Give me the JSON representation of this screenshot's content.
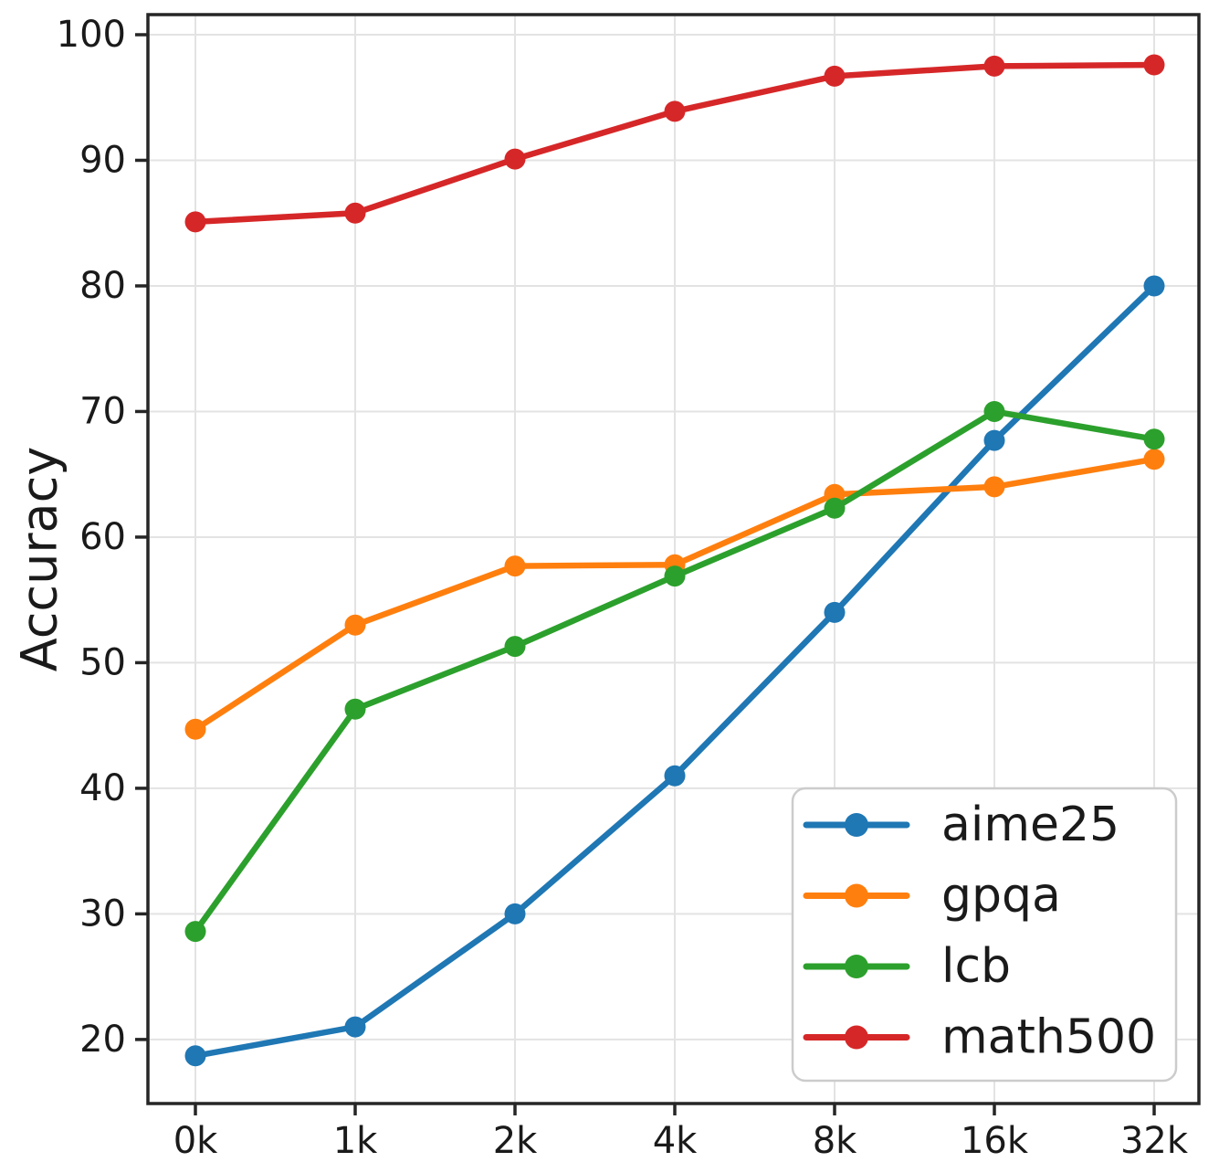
{
  "chart_data": {
    "type": "line",
    "title": "",
    "xlabel": "",
    "ylabel": "Accuracy",
    "categories": [
      "0k",
      "1k",
      "2k",
      "4k",
      "8k",
      "16k",
      "32k"
    ],
    "series": [
      {
        "name": "aime25",
        "color": "#1f77b4",
        "values": [
          18.7,
          21.0,
          30.0,
          41.0,
          54.0,
          67.7,
          80.0
        ]
      },
      {
        "name": "gpqa",
        "color": "#ff7f0e",
        "values": [
          44.7,
          53.0,
          57.7,
          57.8,
          63.4,
          64.0,
          66.2
        ]
      },
      {
        "name": "lcb",
        "color": "#2ca02c",
        "values": [
          28.6,
          46.3,
          51.3,
          56.9,
          62.3,
          70.0,
          67.8
        ]
      },
      {
        "name": "math500",
        "color": "#d62728",
        "values": [
          85.1,
          85.8,
          90.1,
          93.9,
          96.7,
          97.5,
          97.6
        ]
      }
    ],
    "yticks": [
      20,
      30,
      40,
      50,
      60,
      70,
      80,
      90,
      100
    ],
    "ylim": [
      14.9,
      101.6
    ],
    "grid": true,
    "marker": "circle",
    "legend_position": "lower right",
    "colors": {
      "grid": "#e3e3e3",
      "spine": "#262626",
      "text": "#1a1a1a",
      "legend_border": "#cccccc",
      "background": "#ffffff"
    }
  }
}
